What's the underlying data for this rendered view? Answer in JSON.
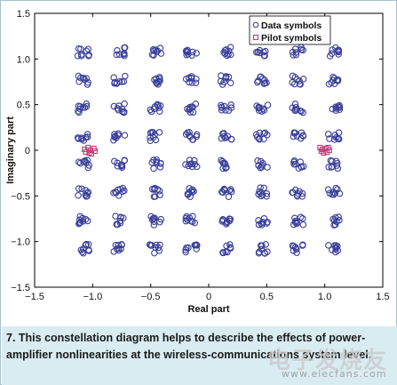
{
  "chart_data": {
    "type": "scatter",
    "xlabel": "Real part",
    "ylabel": "Imaginary part",
    "xlim": [
      -1.5,
      1.5
    ],
    "ylim": [
      -1.5,
      1.5
    ],
    "xticks": [
      -1.5,
      -1.0,
      -0.5,
      0,
      0.5,
      1.0,
      1.5
    ],
    "xtick_labels": [
      "−1.5",
      "−1.0",
      "−0.5",
      "0",
      "0.5",
      "1.0",
      "1.5"
    ],
    "yticks": [
      1.5,
      1.0,
      0.5,
      0,
      -0.5,
      -1.0,
      -1.5
    ],
    "ytick_labels": [
      "1.5",
      "1.0",
      "0.5",
      "0",
      "−0.5",
      "−1.0",
      "−1.5"
    ],
    "grid": false,
    "legend_position": "top-right",
    "series": [
      {
        "name": "Data symbols",
        "marker": "circle",
        "color": "#3a3f9a",
        "centers_x": [
          -1.08,
          -0.77,
          -0.46,
          -0.15,
          0.15,
          0.46,
          0.77,
          1.08
        ],
        "centers_y": [
          1.08,
          0.77,
          0.46,
          0.15,
          -0.15,
          -0.46,
          -0.77,
          -1.08
        ],
        "points_per_cluster": 9,
        "spread": 0.05
      },
      {
        "name": "Pilot symbols",
        "marker": "square",
        "color": "#c2407a",
        "x": [
          -1.02,
          -1.06,
          -0.99,
          -1.04,
          -1.01,
          -1.07,
          -0.98,
          -1.03,
          0.98,
          1.02,
          0.96,
          1.01,
          0.99,
          1.04,
          0.97,
          1.03
        ],
        "y": [
          0.0,
          -0.02,
          0.02,
          0.03,
          -0.04,
          0.01,
          -0.01,
          -0.03,
          0.01,
          -0.02,
          0.03,
          0.02,
          -0.03,
          0.0,
          -0.01,
          0.03
        ]
      }
    ]
  },
  "caption": "7. This constellation diagram helps to describe the effects of power-amplifier nonlinearities at the wireless-communications system level.",
  "watermark": {
    "logo_text": "电子发烧友",
    "url": "www.elecfans.com"
  }
}
